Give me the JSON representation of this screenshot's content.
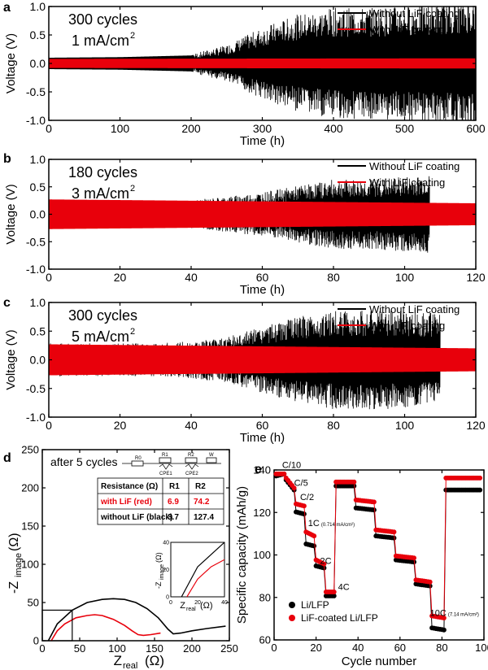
{
  "chart_data": [
    {
      "panel": "a",
      "type": "line",
      "annotation_lines": [
        "300 cycles",
        "1 mA/cm",
        "2"
      ],
      "xlabel": "Time (h)",
      "ylabel": "Voltage (V)",
      "xlim": [
        0,
        600
      ],
      "ylim": [
        -1.0,
        1.0
      ],
      "xticks": [
        "0",
        "100",
        "200",
        "300",
        "400",
        "500",
        "600"
      ],
      "yticks": [
        "-1.0",
        "-0.5",
        "0.0",
        "0.5",
        "1.0"
      ],
      "legend_position": "top-right",
      "series": [
        {
          "name": "Without LiF coating",
          "color": "#000000",
          "period_h": 2,
          "envelope_x": [
            0,
            100,
            200,
            250,
            300,
            350,
            400,
            450,
            500,
            550,
            600
          ],
          "envelope_amp": [
            0.1,
            0.11,
            0.14,
            0.28,
            0.55,
            0.75,
            0.85,
            0.85,
            0.88,
            0.92,
            0.98
          ]
        },
        {
          "name": "With LiF coating",
          "color": "#e8000b",
          "period_h": 2,
          "envelope_x": [
            0,
            600
          ],
          "envelope_amp": [
            0.08,
            0.09
          ]
        }
      ]
    },
    {
      "panel": "b",
      "type": "line",
      "annotation_lines": [
        "180 cycles",
        "3 mA/cm",
        "2"
      ],
      "xlabel": "Time (h)",
      "ylabel": "Voltage (V)",
      "xlim": [
        0,
        120
      ],
      "ylim": [
        -1.0,
        1.0
      ],
      "xticks": [
        "0",
        "20",
        "40",
        "60",
        "80",
        "100",
        "120"
      ],
      "yticks": [
        "-1.0",
        "-0.5",
        "0.0",
        "0.5",
        "1.0"
      ],
      "legend_position": "top-right",
      "series": [
        {
          "name": "Without LiF coating",
          "color": "#000000",
          "period_h": 0.67,
          "end_x": 107,
          "envelope_x": [
            0,
            20,
            40,
            50,
            60,
            70,
            80,
            90,
            100,
            107
          ],
          "envelope_amp": [
            0.2,
            0.2,
            0.22,
            0.28,
            0.35,
            0.45,
            0.55,
            0.55,
            0.6,
            0.62
          ]
        },
        {
          "name": "With LiF coating",
          "color": "#e8000b",
          "period_h": 0.67,
          "envelope_x": [
            0,
            120
          ],
          "envelope_amp": [
            0.27,
            0.2
          ]
        }
      ]
    },
    {
      "panel": "c",
      "type": "line",
      "annotation_lines": [
        "300 cycles",
        "5 mA/cm",
        "2"
      ],
      "xlabel": "Time (h)",
      "ylabel": "Voltage (V)",
      "xlim": [
        0,
        120
      ],
      "ylim": [
        -1.0,
        1.0
      ],
      "xticks": [
        "0",
        "20",
        "40",
        "60",
        "80",
        "100",
        "120"
      ],
      "yticks": [
        "-1.0",
        "-0.5",
        "0.0",
        "0.5",
        "1.0"
      ],
      "legend_position": "top-right",
      "series": [
        {
          "name": "Without LiF coating",
          "color": "#000000",
          "period_h": 0.4,
          "end_x": 110,
          "envelope_x": [
            0,
            30,
            40,
            50,
            60,
            70,
            80,
            90,
            100,
            110
          ],
          "envelope_amp": [
            0.25,
            0.25,
            0.28,
            0.35,
            0.5,
            0.65,
            0.75,
            0.75,
            0.75,
            0.7
          ]
        },
        {
          "name": "With LiF coating",
          "color": "#e8000b",
          "period_h": 0.4,
          "envelope_x": [
            0,
            120
          ],
          "envelope_amp": [
            0.27,
            0.2
          ]
        }
      ]
    },
    {
      "panel": "d",
      "type": "line",
      "annotation": "after 5 cycles",
      "xlabel_main": "Z",
      "xlabel_sub": "real",
      "xlabel_unit": "(Ω)",
      "ylabel_pre": "-Z",
      "ylabel_sub": "image",
      "ylabel_unit": "(Ω)",
      "xlim": [
        0,
        250
      ],
      "ylim": [
        0,
        250
      ],
      "xticks": [
        "0",
        "50",
        "100",
        "150",
        "200",
        "250"
      ],
      "yticks": [
        "0",
        "50",
        "100",
        "150",
        "200",
        "250"
      ],
      "circuit_labels": [
        "R0",
        "R1",
        "R2",
        "W",
        "CPE1",
        "CPE2"
      ],
      "table": {
        "headers": [
          "Resistance (Ω)",
          "R1",
          "R2"
        ],
        "rows": [
          {
            "label": "with LiF (red)",
            "r1": "6.9",
            "r2": "74.2",
            "color": "#e8000b"
          },
          {
            "label": "without LiF (black)",
            "r1": "3.7",
            "r2": "127.4",
            "color": "#000000"
          }
        ]
      },
      "series": [
        {
          "name": "without LiF (black)",
          "color": "#000000",
          "x": [
            8,
            20,
            40,
            60,
            80,
            95,
            110,
            125,
            140,
            155,
            168,
            175,
            185,
            200,
            220,
            245
          ],
          "y": [
            0,
            22,
            40,
            50,
            54,
            55,
            54,
            50,
            42,
            30,
            15,
            9,
            10,
            13,
            16,
            19
          ]
        },
        {
          "name": "with LiF (red)",
          "color": "#e8000b",
          "x": [
            12,
            20,
            30,
            45,
            60,
            70,
            80,
            95,
            110,
            120,
            128,
            135,
            145,
            158
          ],
          "y": [
            0,
            13,
            22,
            30,
            33,
            34,
            33,
            28,
            20,
            13,
            8,
            7,
            8,
            10
          ]
        }
      ],
      "inset": {
        "xlim": [
          0,
          40
        ],
        "ylim": [
          0,
          40
        ],
        "xticks": [
          "0",
          "20",
          "40"
        ],
        "yticks": [
          "0",
          "20",
          "40"
        ],
        "xlabel_main": "Z",
        "xlabel_sub": "real",
        "xlabel_unit": "(Ω)",
        "ylabel_pre": "-Z",
        "ylabel_sub": "image",
        "ylabel_unit": "(Ω)"
      }
    },
    {
      "panel": "e",
      "type": "scatter",
      "xlabel": "Cycle number",
      "ylabel": "Specific capacity (mAh/g)",
      "xlim": [
        0,
        105
      ],
      "ylim": [
        60,
        145
      ],
      "xticks": [
        "0",
        "20",
        "40",
        "60",
        "80",
        "100"
      ],
      "yticks": [
        "60",
        "80",
        "100",
        "120",
        "140"
      ],
      "rate_labels": [
        {
          "text": "C/10",
          "x": 4,
          "y": 146
        },
        {
          "text": "C/5",
          "x": 10,
          "y": 137
        },
        {
          "text": "C/2",
          "x": 13,
          "y": 130
        },
        {
          "text": "1C",
          "small": "(0.714 mA/cm²)",
          "x": 17,
          "y": 117
        },
        {
          "text": "2C",
          "x": 23,
          "y": 98
        },
        {
          "text": "4C",
          "x": 32,
          "y": 85
        },
        {
          "text": "10C",
          "small": "(7.14 mA/cm²)",
          "x": 78,
          "y": 72
        }
      ],
      "legend_position": "bottom-left",
      "series": [
        {
          "name": "Li/LFP",
          "color": "#000000",
          "segments": [
            {
              "x0": 1,
              "x1": 5,
              "v0": 142,
              "v1": 143
            },
            {
              "x0": 6,
              "x1": 10,
              "v0": 140,
              "v1": 135
            },
            {
              "x0": 11,
              "x1": 15,
              "v0": 124,
              "v1": 123
            },
            {
              "x0": 16,
              "x1": 20,
              "v0": 108,
              "v1": 107
            },
            {
              "x0": 21,
              "x1": 25,
              "v0": 97,
              "v1": 96
            },
            {
              "x0": 26,
              "x1": 30,
              "v0": 82,
              "v1": 82
            },
            {
              "x0": 31,
              "x1": 40,
              "v0": 137,
              "v1": 137
            },
            {
              "x0": 41,
              "x1": 50,
              "v0": 126,
              "v1": 125
            },
            {
              "x0": 51,
              "x1": 60,
              "v0": 112,
              "v1": 111
            },
            {
              "x0": 61,
              "x1": 70,
              "v0": 100,
              "v1": 99
            },
            {
              "x0": 71,
              "x1": 78,
              "v0": 88,
              "v1": 87
            },
            {
              "x0": 79,
              "x1": 85,
              "v0": 66,
              "v1": 65
            },
            {
              "x0": 86,
              "x1": 103,
              "v0": 135,
              "v1": 135
            }
          ]
        },
        {
          "name": "LiF-coated Li/LFP",
          "color": "#e8000b",
          "segments": [
            {
              "x0": 1,
              "x1": 5,
              "v0": 143,
              "v1": 143
            },
            {
              "x0": 6,
              "x1": 10,
              "v0": 141,
              "v1": 136
            },
            {
              "x0": 11,
              "x1": 15,
              "v0": 128,
              "v1": 127
            },
            {
              "x0": 16,
              "x1": 20,
              "v0": 114,
              "v1": 112
            },
            {
              "x0": 21,
              "x1": 25,
              "v0": 100,
              "v1": 98
            },
            {
              "x0": 26,
              "x1": 30,
              "v0": 84,
              "v1": 84
            },
            {
              "x0": 31,
              "x1": 40,
              "v0": 139,
              "v1": 139
            },
            {
              "x0": 41,
              "x1": 50,
              "v0": 130,
              "v1": 129
            },
            {
              "x0": 51,
              "x1": 60,
              "v0": 115,
              "v1": 114
            },
            {
              "x0": 61,
              "x1": 70,
              "v0": 102,
              "v1": 101
            },
            {
              "x0": 71,
              "x1": 78,
              "v0": 90,
              "v1": 89
            },
            {
              "x0": 79,
              "x1": 85,
              "v0": 72,
              "v1": 71
            },
            {
              "x0": 86,
              "x1": 103,
              "v0": 141,
              "v1": 141
            }
          ]
        }
      ]
    }
  ]
}
